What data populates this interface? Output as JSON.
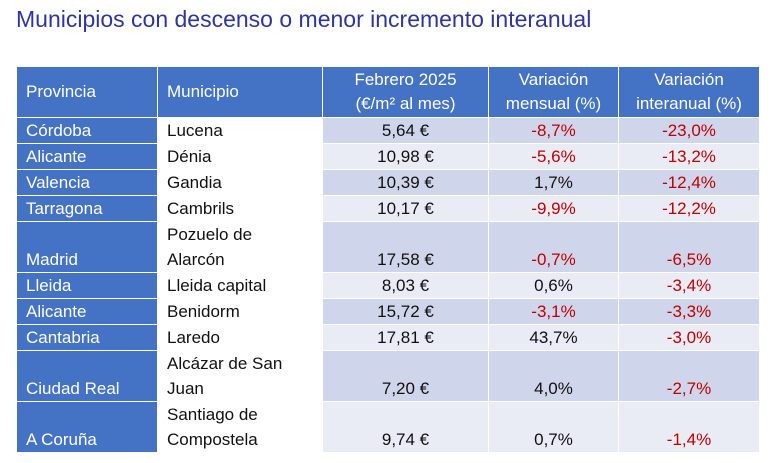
{
  "title": "Municipios con descenso o menor incremento interanual",
  "headers": {
    "provincia": "Provincia",
    "municipio": "Municipio",
    "precio_l1": "Febrero 2025",
    "precio_l2": "(€/m² al mes)",
    "mensual_l1": "Variación",
    "mensual_l2": "mensual (%)",
    "interanual_l1": "Variación",
    "interanual_l2": "interanual (%)"
  },
  "rows": [
    {
      "provincia": "Córdoba",
      "municipio": [
        "Lucena"
      ],
      "precio": "5,64 €",
      "mensual": "-8,7%",
      "interanual": "-23,0%"
    },
    {
      "provincia": "Alicante",
      "municipio": [
        "Dénia"
      ],
      "precio": "10,98 €",
      "mensual": "-5,6%",
      "interanual": "-13,2%"
    },
    {
      "provincia": "Valencia",
      "municipio": [
        "Gandia"
      ],
      "precio": "10,39 €",
      "mensual": "1,7%",
      "interanual": "-12,4%"
    },
    {
      "provincia": "Tarragona",
      "municipio": [
        "Cambrils"
      ],
      "precio": "10,17 €",
      "mensual": "-9,9%",
      "interanual": "-12,2%"
    },
    {
      "provincia": "Madrid",
      "municipio": [
        "Pozuelo de",
        "Alarcón"
      ],
      "precio": "17,58 €",
      "mensual": "-0,7%",
      "interanual": "-6,5%"
    },
    {
      "provincia": "Lleida",
      "municipio": [
        "Lleida capital"
      ],
      "precio": "8,03 €",
      "mensual": "0,6%",
      "interanual": "-3,4%"
    },
    {
      "provincia": "Alicante",
      "municipio": [
        "Benidorm"
      ],
      "precio": "15,72 €",
      "mensual": "-3,1%",
      "interanual": "-3,3%"
    },
    {
      "provincia": "Cantabria",
      "municipio": [
        "Laredo"
      ],
      "precio": "17,81 €",
      "mensual": "43,7%",
      "interanual": "-3,0%"
    },
    {
      "provincia": "Ciudad Real",
      "municipio": [
        "Alcázar de San",
        "Juan"
      ],
      "precio": "7,20 €",
      "mensual": "4,0%",
      "interanual": "-2,7%"
    },
    {
      "provincia": "A Coruña",
      "municipio": [
        "Santiago de",
        "Compostela"
      ],
      "precio": "9,74 €",
      "mensual": "0,7%",
      "interanual": "-1,4%"
    }
  ],
  "colors": {
    "title": "#2e35a0",
    "header_bg": "#4472c4",
    "row_band_dark": "#cfd5ea",
    "row_band_light": "#e9ebf5",
    "negative": "#c00000"
  }
}
